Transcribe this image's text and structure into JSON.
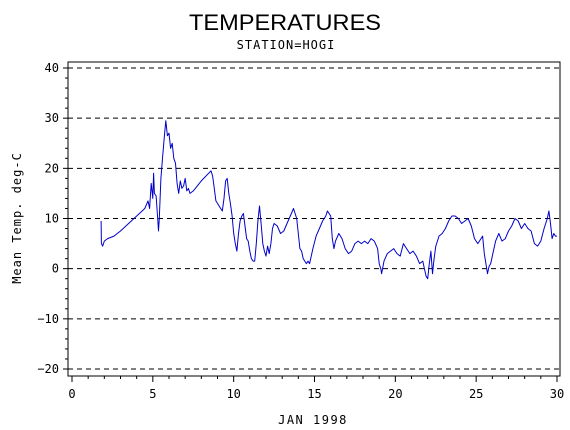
{
  "chart_data": {
    "type": "line",
    "title": "TEMPERATURES",
    "subtitle": "STATION=HOGI",
    "xlabel": "JAN 1998",
    "ylabel": "Mean Temp. deg-C",
    "xlim": [
      0,
      30
    ],
    "ylim": [
      -20,
      40
    ],
    "x_ticks": [
      0,
      5,
      10,
      15,
      20,
      25,
      30
    ],
    "y_ticks": [
      -20,
      -10,
      0,
      10,
      20,
      30,
      40
    ],
    "grid": "horizontal dashed at major y ticks",
    "series": [
      {
        "color": "#0000cc",
        "points": [
          [
            1.8,
            9.5
          ],
          [
            1.82,
            5.0
          ],
          [
            1.9,
            4.5
          ],
          [
            2.0,
            5.5
          ],
          [
            2.2,
            6.0
          ],
          [
            2.6,
            6.5
          ],
          [
            3.0,
            7.5
          ],
          [
            3.5,
            9.0
          ],
          [
            4.0,
            10.5
          ],
          [
            4.5,
            12.0
          ],
          [
            4.7,
            13.5
          ],
          [
            4.8,
            12.0
          ],
          [
            4.9,
            17.0
          ],
          [
            5.0,
            14.0
          ],
          [
            5.05,
            19.0
          ],
          [
            5.1,
            15.0
          ],
          [
            5.2,
            14.5
          ],
          [
            5.3,
            10.0
          ],
          [
            5.35,
            7.5
          ],
          [
            5.4,
            10.0
          ],
          [
            5.5,
            18.0
          ],
          [
            5.6,
            22.0
          ],
          [
            5.7,
            26.0
          ],
          [
            5.8,
            29.5
          ],
          [
            5.9,
            26.5
          ],
          [
            6.0,
            27.0
          ],
          [
            6.1,
            24.0
          ],
          [
            6.2,
            25.0
          ],
          [
            6.3,
            22.0
          ],
          [
            6.4,
            21.0
          ],
          [
            6.5,
            17.0
          ],
          [
            6.6,
            15.0
          ],
          [
            6.7,
            17.5
          ],
          [
            6.8,
            16.0
          ],
          [
            6.9,
            16.5
          ],
          [
            7.0,
            18.0
          ],
          [
            7.1,
            15.5
          ],
          [
            7.2,
            16.0
          ],
          [
            7.3,
            15.0
          ],
          [
            7.5,
            15.5
          ],
          [
            8.0,
            17.5
          ],
          [
            8.6,
            19.5
          ],
          [
            8.7,
            18.5
          ],
          [
            8.8,
            16.0
          ],
          [
            8.9,
            13.5
          ],
          [
            9.0,
            13.0
          ],
          [
            9.1,
            12.5
          ],
          [
            9.2,
            12.0
          ],
          [
            9.3,
            11.5
          ],
          [
            9.4,
            14.0
          ],
          [
            9.5,
            17.5
          ],
          [
            9.6,
            18.0
          ],
          [
            9.7,
            15.0
          ],
          [
            9.8,
            13.0
          ],
          [
            9.9,
            10.5
          ],
          [
            10.0,
            7.0
          ],
          [
            10.1,
            5.0
          ],
          [
            10.2,
            3.5
          ],
          [
            10.3,
            7.0
          ],
          [
            10.4,
            9.5
          ],
          [
            10.5,
            10.5
          ],
          [
            10.6,
            11.0
          ],
          [
            10.7,
            8.5
          ],
          [
            10.8,
            6.0
          ],
          [
            10.9,
            5.5
          ],
          [
            11.0,
            3.5
          ],
          [
            11.1,
            2.0
          ],
          [
            11.2,
            1.5
          ],
          [
            11.3,
            1.5
          ],
          [
            11.4,
            5.0
          ],
          [
            11.5,
            9.5
          ],
          [
            11.6,
            12.5
          ],
          [
            11.7,
            9.0
          ],
          [
            11.8,
            5.0
          ],
          [
            11.9,
            3.5
          ],
          [
            12.0,
            2.5
          ],
          [
            12.1,
            4.5
          ],
          [
            12.2,
            3.0
          ],
          [
            12.3,
            5.0
          ],
          [
            12.4,
            8.0
          ],
          [
            12.5,
            9.0
          ],
          [
            12.7,
            8.5
          ],
          [
            12.9,
            7.0
          ],
          [
            13.1,
            7.5
          ],
          [
            13.3,
            9.0
          ],
          [
            13.5,
            10.5
          ],
          [
            13.7,
            12.0
          ],
          [
            13.9,
            10.0
          ],
          [
            14.0,
            7.0
          ],
          [
            14.1,
            4.0
          ],
          [
            14.2,
            3.5
          ],
          [
            14.3,
            2.0
          ],
          [
            14.4,
            1.5
          ],
          [
            14.5,
            1.0
          ],
          [
            14.6,
            1.5
          ],
          [
            14.7,
            1.0
          ],
          [
            14.9,
            4.0
          ],
          [
            15.1,
            6.5
          ],
          [
            15.3,
            8.0
          ],
          [
            15.5,
            9.5
          ],
          [
            15.7,
            10.5
          ],
          [
            15.8,
            11.5
          ],
          [
            16.0,
            10.5
          ],
          [
            16.1,
            6.0
          ],
          [
            16.2,
            4.0
          ],
          [
            16.3,
            5.5
          ],
          [
            16.5,
            7.0
          ],
          [
            16.7,
            6.0
          ],
          [
            16.9,
            4.0
          ],
          [
            17.1,
            3.0
          ],
          [
            17.3,
            3.5
          ],
          [
            17.5,
            5.0
          ],
          [
            17.7,
            5.5
          ],
          [
            17.9,
            5.0
          ],
          [
            18.1,
            5.5
          ],
          [
            18.3,
            5.0
          ],
          [
            18.5,
            6.0
          ],
          [
            18.7,
            5.5
          ],
          [
            18.9,
            4.0
          ],
          [
            19.0,
            1.0
          ],
          [
            19.1,
            0.0
          ],
          [
            19.15,
            -1.0
          ],
          [
            19.3,
            1.5
          ],
          [
            19.5,
            3.0
          ],
          [
            19.7,
            3.5
          ],
          [
            19.9,
            4.0
          ],
          [
            20.1,
            3.0
          ],
          [
            20.3,
            2.5
          ],
          [
            20.5,
            5.0
          ],
          [
            20.7,
            4.0
          ],
          [
            20.9,
            3.0
          ],
          [
            21.1,
            3.5
          ],
          [
            21.3,
            2.5
          ],
          [
            21.5,
            1.0
          ],
          [
            21.7,
            1.5
          ],
          [
            21.8,
            0.0
          ],
          [
            21.9,
            -1.5
          ],
          [
            22.0,
            -2.0
          ],
          [
            22.1,
            1.0
          ],
          [
            22.2,
            3.5
          ],
          [
            22.3,
            -1.0
          ],
          [
            22.4,
            2.0
          ],
          [
            22.5,
            4.5
          ],
          [
            22.7,
            6.5
          ],
          [
            22.9,
            7.0
          ],
          [
            23.1,
            8.0
          ],
          [
            23.3,
            9.5
          ],
          [
            23.5,
            10.5
          ],
          [
            23.7,
            10.5
          ],
          [
            23.9,
            10.0
          ],
          [
            24.1,
            9.0
          ],
          [
            24.3,
            9.5
          ],
          [
            24.5,
            10.0
          ],
          [
            24.7,
            8.5
          ],
          [
            24.9,
            6.0
          ],
          [
            25.1,
            5.0
          ],
          [
            25.3,
            6.0
          ],
          [
            25.4,
            6.5
          ],
          [
            25.5,
            3.0
          ],
          [
            25.6,
            1.0
          ],
          [
            25.7,
            -1.0
          ],
          [
            25.8,
            0.5
          ],
          [
            25.9,
            1.0
          ],
          [
            26.0,
            2.5
          ],
          [
            26.2,
            5.5
          ],
          [
            26.4,
            7.0
          ],
          [
            26.6,
            5.5
          ],
          [
            26.8,
            6.0
          ],
          [
            27.0,
            7.5
          ],
          [
            27.2,
            8.5
          ],
          [
            27.4,
            10.0
          ],
          [
            27.6,
            9.5
          ],
          [
            27.8,
            8.0
          ],
          [
            28.0,
            9.0
          ],
          [
            28.2,
            8.0
          ],
          [
            28.4,
            7.5
          ],
          [
            28.6,
            5.0
          ],
          [
            28.8,
            4.5
          ],
          [
            29.0,
            5.5
          ],
          [
            29.2,
            8.0
          ],
          [
            29.4,
            10.0
          ],
          [
            29.5,
            11.5
          ],
          [
            29.6,
            9.0
          ],
          [
            29.7,
            6.0
          ],
          [
            29.8,
            7.0
          ],
          [
            29.9,
            6.5
          ],
          [
            30.0,
            6.5
          ]
        ]
      }
    ]
  }
}
